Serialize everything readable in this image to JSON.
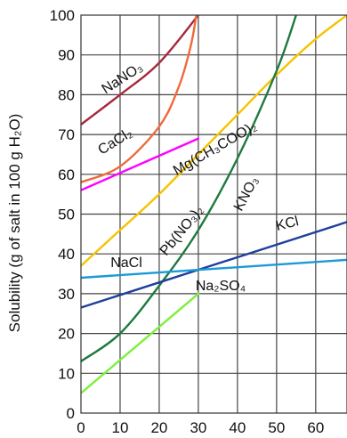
{
  "chart_data": {
    "type": "line",
    "title": "",
    "xlabel": "",
    "ylabel": "Solubility (g of salt in 100 g H₂O)",
    "xlim": [
      0,
      68
    ],
    "ylim": [
      0,
      100
    ],
    "x_ticks": [
      "0",
      "10",
      "20",
      "30",
      "40",
      "50",
      "60"
    ],
    "y_ticks": [
      "0",
      "10",
      "20",
      "30",
      "40",
      "50",
      "60",
      "70",
      "80",
      "90",
      "100"
    ],
    "grid": true,
    "series": [
      {
        "name": "NaNO₃",
        "label": "NaNO3",
        "color": "#a52a3a",
        "x": [
          0,
          10,
          20,
          30
        ],
        "y": [
          72.5,
          80,
          88,
          100
        ]
      },
      {
        "name": "CaCl₂",
        "label": "CaCl2",
        "color": "#f06a3a",
        "x": [
          0,
          10,
          20,
          25,
          28,
          29.5
        ],
        "y": [
          58,
          62,
          72,
          82,
          92,
          100
        ]
      },
      {
        "name": "Mg(CH₃COO)₂",
        "label": "Mg(CH3COO)2",
        "color": "#ff00ff",
        "x": [
          0,
          30
        ],
        "y": [
          56,
          69
        ]
      },
      {
        "name": "Pb(NO₃)₂",
        "label": "Pb(NO3)2",
        "color": "#f5c400",
        "x": [
          0,
          10,
          20,
          30,
          40,
          50,
          60,
          68
        ],
        "y": [
          37,
          46,
          55,
          65,
          75,
          85,
          94,
          100
        ]
      },
      {
        "name": "KNO₃",
        "label": "KNO3",
        "color": "#1f7a3e",
        "x": [
          0,
          10,
          20,
          30,
          40,
          50,
          55
        ],
        "y": [
          13,
          20,
          32,
          46,
          64,
          86,
          100
        ]
      },
      {
        "name": "KCl",
        "label": "KCl",
        "color": "#1f3f9a",
        "x": [
          0,
          68
        ],
        "y": [
          26.5,
          48
        ]
      },
      {
        "name": "NaCl",
        "label": "NaCl",
        "color": "#1a9ad8",
        "x": [
          0,
          68
        ],
        "y": [
          34,
          38.5
        ]
      },
      {
        "name": "Na₂SO₄",
        "label": "Na2SO4",
        "color": "#7cf03a",
        "x": [
          0,
          30
        ],
        "y": [
          5,
          30
        ]
      }
    ]
  }
}
